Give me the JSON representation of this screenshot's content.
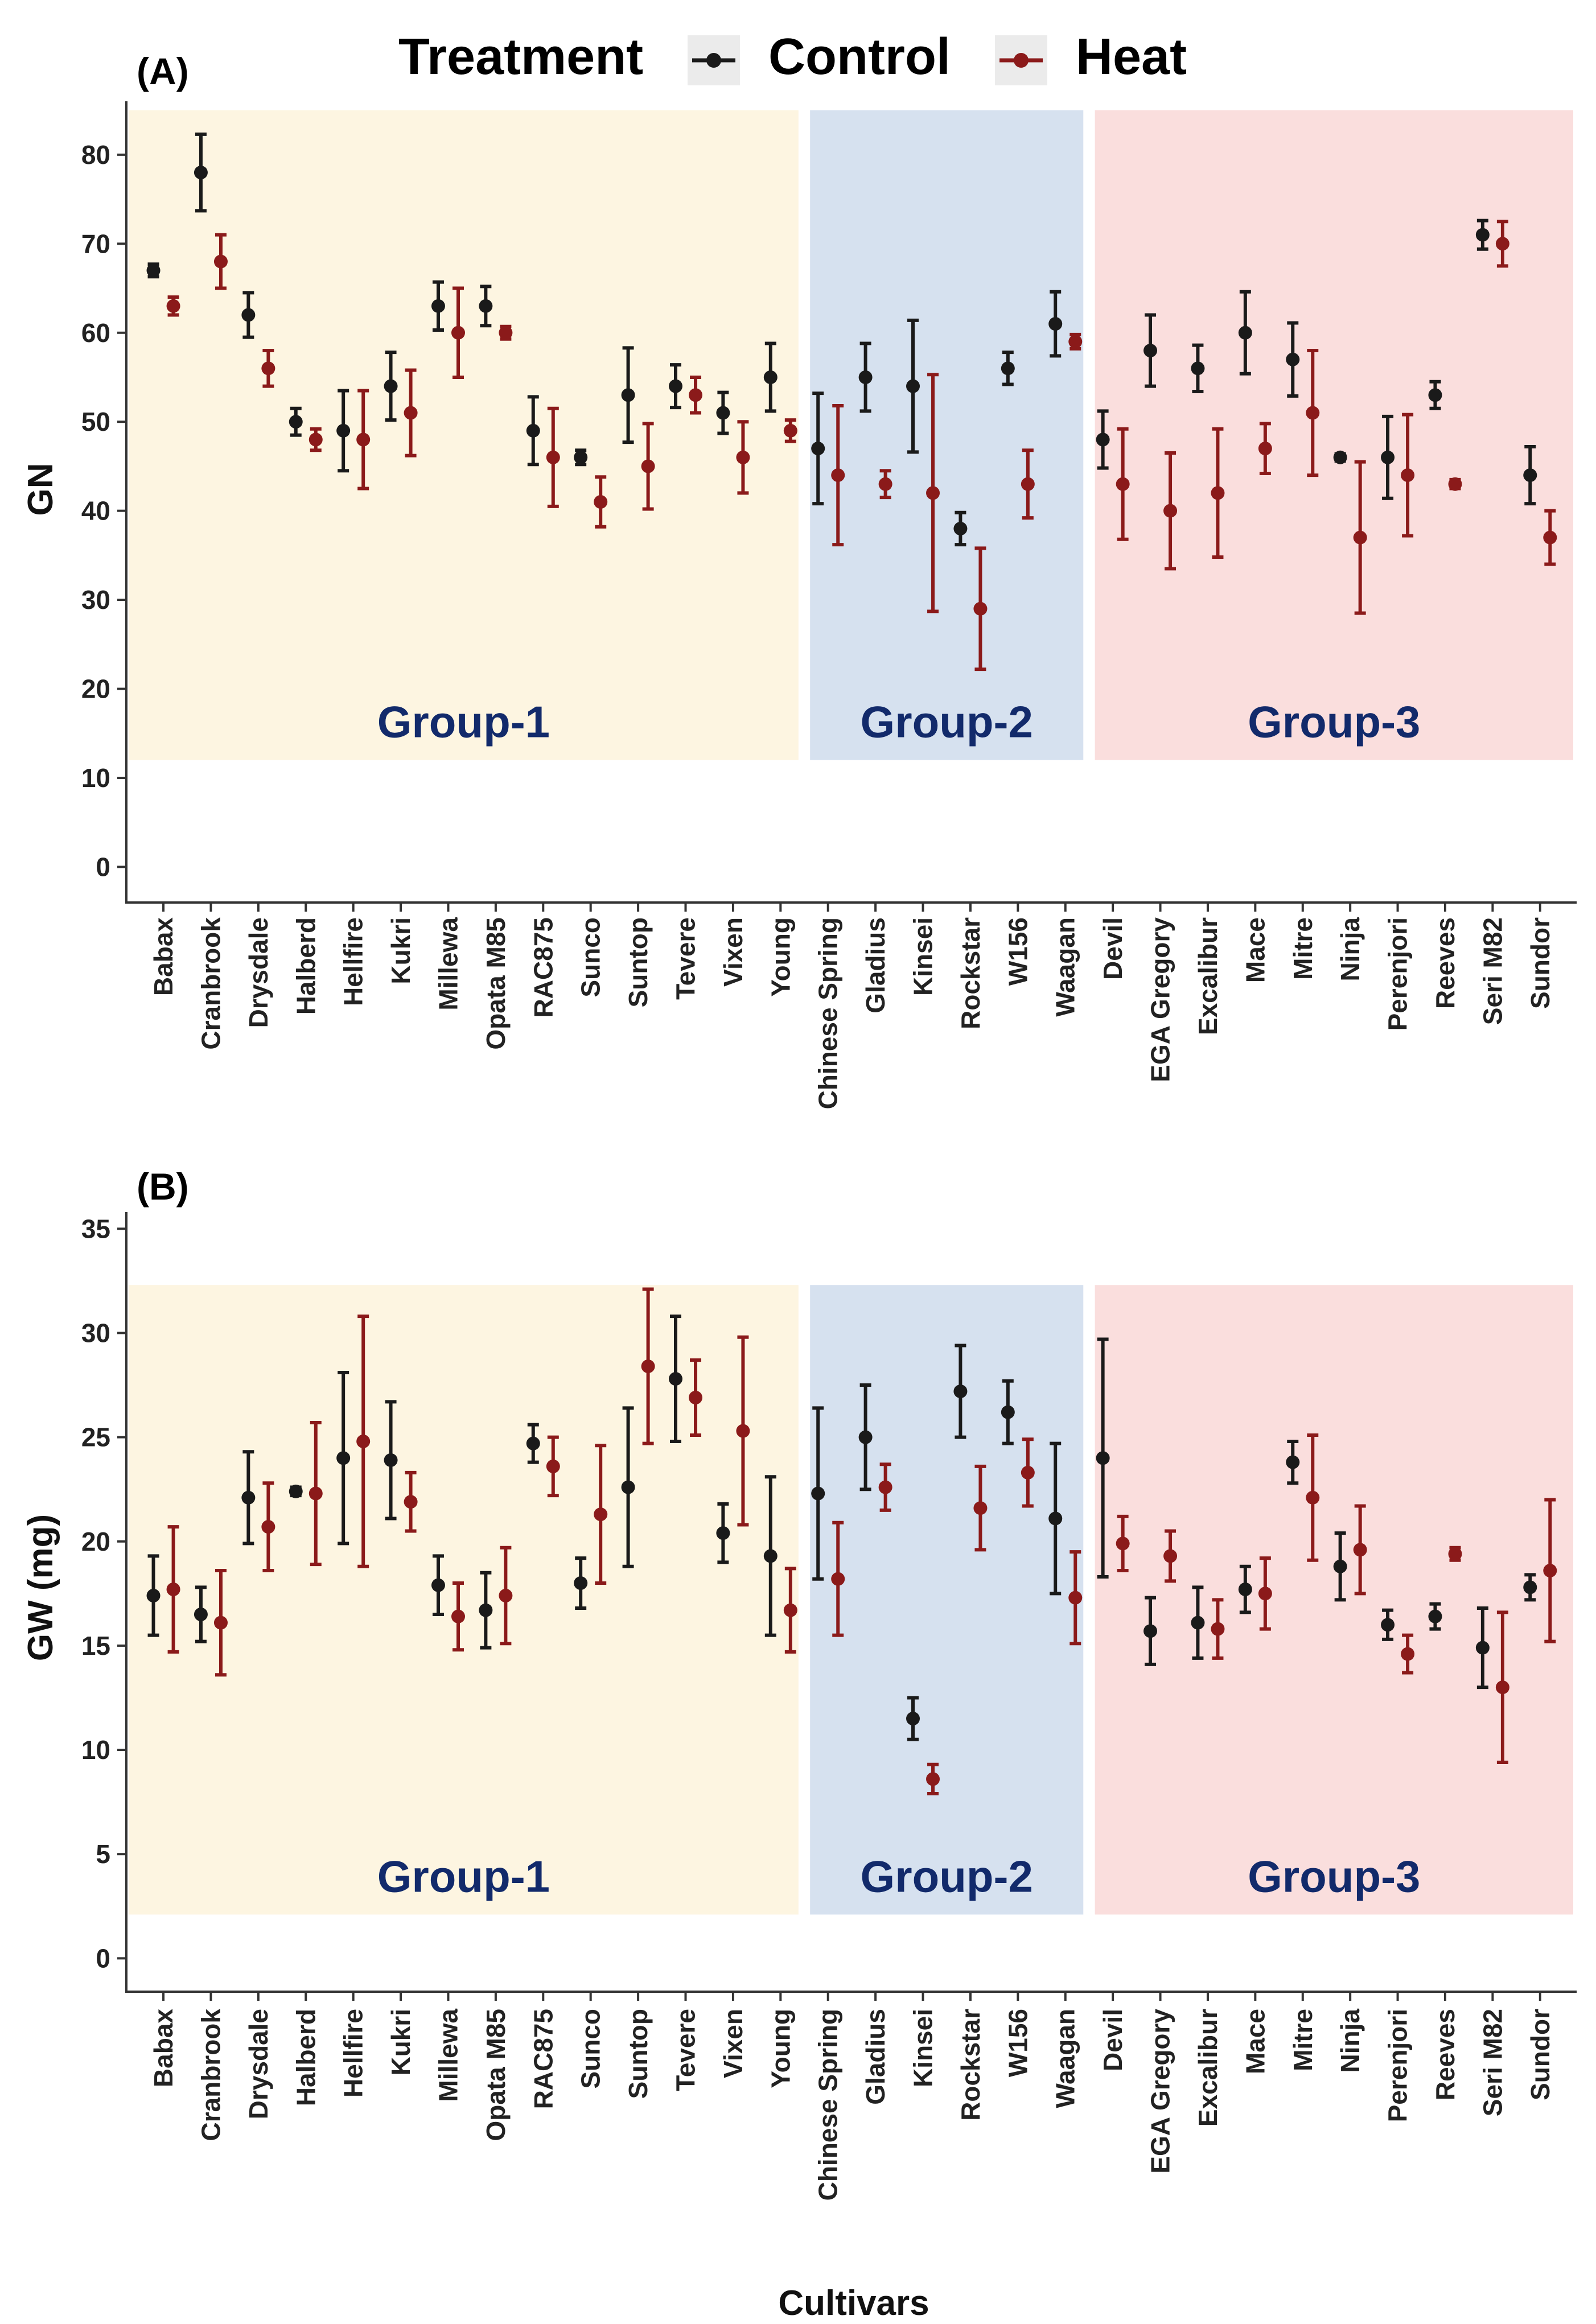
{
  "legend": {
    "title": "Treatment",
    "entries": [
      {
        "name": "Control",
        "color": "#1a1a1a"
      },
      {
        "name": "Heat",
        "color": "#8b1a1a"
      }
    ]
  },
  "group_colors": {
    "Group-1": "#fdf5e1",
    "Group-2": "#d6e1ef",
    "Group-3": "#fadedd",
    "label": "#122a6b"
  },
  "chart_data": [
    {
      "type": "scatter",
      "panel_label": "(A)",
      "ylabel": "GN",
      "xlabel": "",
      "ylim": [
        -4,
        86
      ],
      "yticks": [
        0,
        10,
        20,
        30,
        40,
        50,
        60,
        70,
        80
      ],
      "groups": [
        {
          "label": "Group-1",
          "start": 0,
          "end": 13,
          "ymin": 12,
          "ymax": 85
        },
        {
          "label": "Group-2",
          "start": 14,
          "end": 19,
          "ymin": 12,
          "ymax": 85
        },
        {
          "label": "Group-3",
          "start": 20,
          "end": 29,
          "ymin": 12,
          "ymax": 85
        }
      ],
      "categories": [
        "Babax",
        "Cranbrook",
        "Drysdale",
        "Halberd",
        "Hellfire",
        "Kukri",
        "Millewa",
        "Opata M85",
        "RAC875",
        "Sunco",
        "Suntop",
        "Tevere",
        "Vixen",
        "Young",
        "Chinese Spring",
        "Gladius",
        "Kinsei",
        "Rockstar",
        "W156",
        "Waagan",
        "Devil",
        "EGA Gregory",
        "Excalibur",
        "Mace",
        "Mitre",
        "Ninja",
        "Perenjori",
        "Reeves",
        "Seri M82",
        "Sundor"
      ],
      "series": [
        {
          "name": "Control",
          "values": [
            67,
            78,
            62,
            50,
            49,
            54,
            63,
            63,
            49,
            46,
            53,
            54,
            51,
            55,
            47,
            55,
            54,
            38,
            56,
            61,
            48,
            58,
            56,
            60,
            57,
            46,
            46,
            53,
            71,
            44
          ],
          "errors": [
            0.7,
            4.3,
            2.5,
            1.5,
            4.5,
            3.8,
            2.7,
            2.2,
            3.8,
            0.8,
            5.3,
            2.4,
            2.3,
            3.8,
            6.2,
            3.8,
            7.4,
            1.8,
            1.8,
            3.6,
            3.2,
            4.0,
            2.6,
            4.6,
            4.1,
            0.4,
            4.6,
            1.5,
            1.6,
            3.2
          ]
        },
        {
          "name": "Heat",
          "values": [
            63,
            68,
            56,
            48,
            48,
            51,
            60,
            60,
            46,
            41,
            45,
            53,
            46,
            49,
            44,
            43,
            42,
            29,
            43,
            59,
            43,
            40,
            42,
            47,
            51,
            37,
            44,
            43,
            70,
            37
          ]
        }
      ]
    },
    {
      "type": "scatter",
      "panel_label": "(B)",
      "ylabel": "GW (mg)",
      "xlabel": "Cultivars",
      "ylim": [
        -1.6,
        35.8
      ],
      "yticks": [
        0,
        5,
        10,
        15,
        20,
        25,
        30,
        35
      ],
      "groups": [
        {
          "label": "Group-1",
          "start": 0,
          "end": 13,
          "ymin": 2.1,
          "ymax": 32.3
        },
        {
          "label": "Group-2",
          "start": 14,
          "end": 19,
          "ymin": 2.1,
          "ymax": 32.3
        },
        {
          "label": "Group-3",
          "start": 20,
          "end": 29,
          "ymin": 2.1,
          "ymax": 32.3
        }
      ],
      "categories": [
        "Babax",
        "Cranbrook",
        "Drysdale",
        "Halberd",
        "Hellfire",
        "Kukri",
        "Millewa",
        "Opata M85",
        "RAC875",
        "Sunco",
        "Suntop",
        "Tevere",
        "Vixen",
        "Young",
        "Chinese Spring",
        "Gladius",
        "Kinsei",
        "Rockstar",
        "W156",
        "Waagan",
        "Devil",
        "EGA Gregory",
        "Excalibur",
        "Mace",
        "Mitre",
        "Ninja",
        "Perenjori",
        "Reeves",
        "Seri M82",
        "Sundor"
      ],
      "series": [
        {
          "name": "Control",
          "values": [
            17.4,
            16.5,
            22.1,
            22.4,
            24.0,
            23.9,
            17.9,
            16.7,
            24.7,
            18.0,
            22.6,
            27.8,
            20.4,
            19.3,
            22.3,
            25.0,
            11.5,
            27.2,
            26.2,
            21.1,
            24.0,
            15.7,
            16.1,
            17.7,
            23.8,
            18.8,
            16.0,
            16.4,
            14.9,
            17.8
          ],
          "errors": [
            1.9,
            1.3,
            2.2,
            0.2,
            4.1,
            2.8,
            1.4,
            1.8,
            0.9,
            1.2,
            3.8,
            3.0,
            1.4,
            3.8,
            4.1,
            2.5,
            1.0,
            2.2,
            1.5,
            3.6,
            5.7,
            1.6,
            1.7,
            1.1,
            1.0,
            1.6,
            0.7,
            0.6,
            1.9,
            0.6
          ]
        },
        {
          "name": "Heat",
          "values": [
            17.7,
            16.1,
            20.7,
            22.3,
            24.8,
            21.9,
            16.4,
            17.4,
            23.6,
            21.3,
            28.4,
            26.9,
            25.3,
            16.7,
            18.2,
            22.6,
            8.6,
            21.6,
            23.3,
            17.3,
            19.9,
            19.3,
            15.8,
            17.5,
            22.1,
            19.6,
            14.6,
            19.4,
            13.0,
            18.6
          ],
          "errors": [
            3.0,
            2.5,
            2.1,
            3.4,
            6.0,
            1.4,
            1.6,
            2.3,
            1.4,
            3.3,
            3.7,
            1.8,
            4.5,
            2.0,
            2.7,
            1.1,
            0.7,
            2.0,
            1.6,
            2.2,
            1.3,
            1.2,
            1.4,
            1.7,
            3.0,
            2.1,
            0.9,
            0.3,
            3.6,
            3.4
          ]
        }
      ]
    }
  ]
}
